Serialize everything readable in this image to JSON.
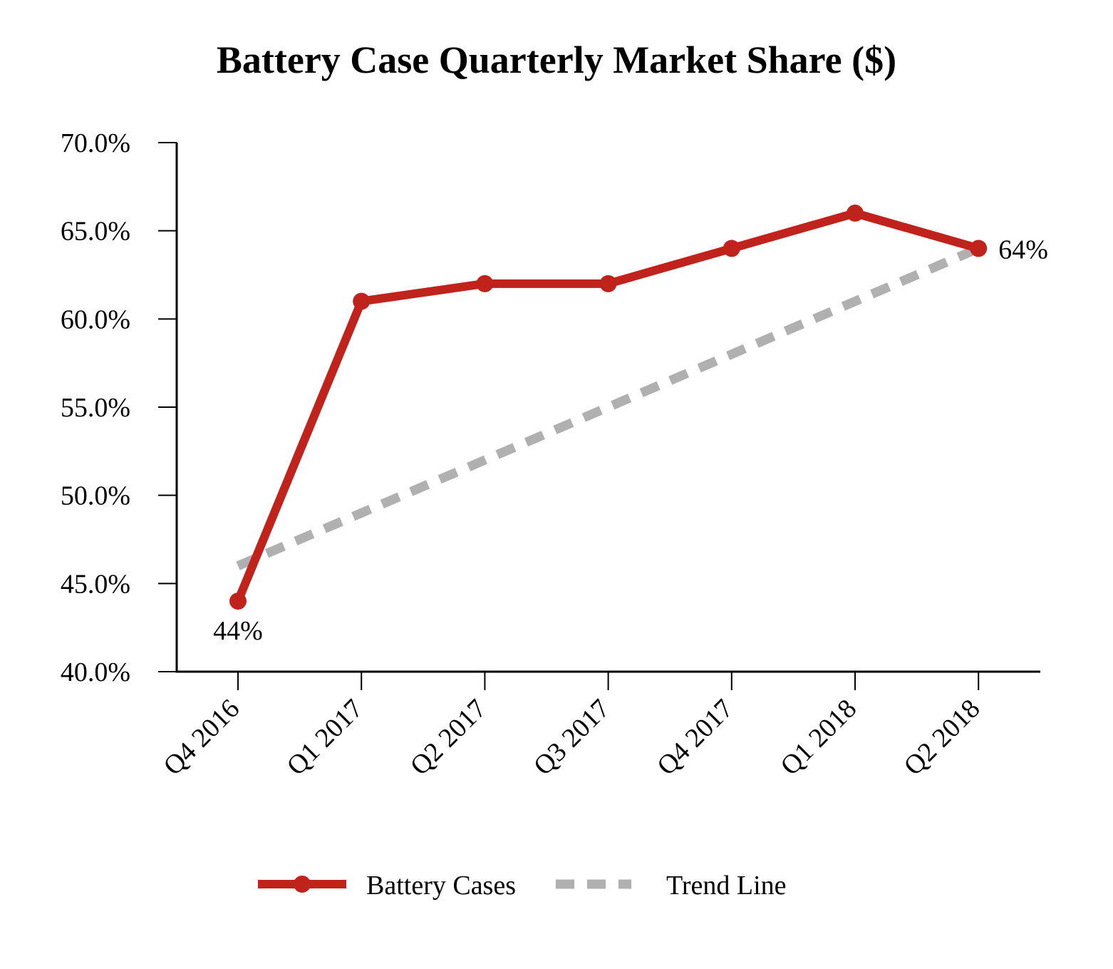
{
  "chart_data": {
    "type": "line",
    "title": "Battery Case Quarterly Market Share ($)",
    "xlabel": "",
    "ylabel": "",
    "categories": [
      "Q4 2016",
      "Q1 2017",
      "Q2 2017",
      "Q3 2017",
      "Q4 2017",
      "Q1 2018",
      "Q2 2018"
    ],
    "ylim": [
      0.4,
      0.7
    ],
    "ytick_values": [
      0.4,
      0.45,
      0.5,
      0.55,
      0.6,
      0.65,
      0.7
    ],
    "ytick_labels": [
      "40.0%",
      "45.0%",
      "50.0%",
      "55.0%",
      "60.0%",
      "65.0%",
      "70.0%"
    ],
    "grid": false,
    "legend_position": "bottom-center",
    "series": [
      {
        "name": "Battery Cases",
        "style": "solid-with-markers",
        "color": "#c0231b",
        "values": [
          0.44,
          0.61,
          0.62,
          0.62,
          0.64,
          0.66,
          0.64
        ]
      },
      {
        "name": "Trend Line",
        "style": "dashed",
        "color": "#b0b0b0",
        "values": [
          0.46,
          0.49,
          0.52,
          0.55,
          0.58,
          0.61,
          0.64
        ]
      }
    ],
    "annotations": [
      {
        "series": 0,
        "index": 0,
        "text": "44%"
      },
      {
        "series": 0,
        "index": 6,
        "text": "64%"
      }
    ]
  }
}
